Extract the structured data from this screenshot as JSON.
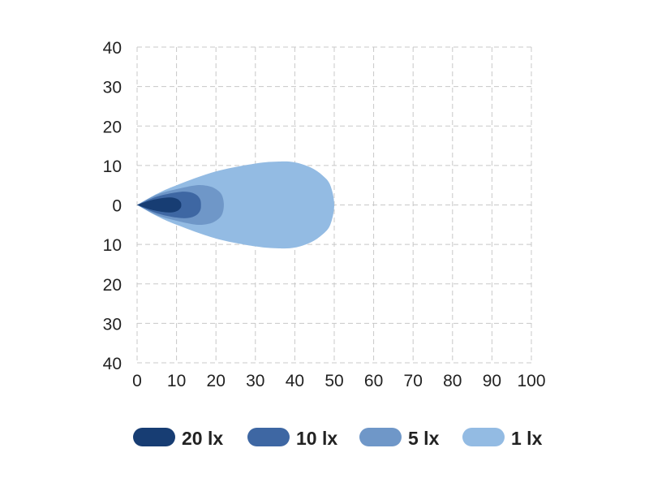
{
  "chart_data": {
    "type": "area",
    "xlim": [
      0,
      100
    ],
    "ylim": [
      -40,
      40
    ],
    "x_ticks": [
      "0",
      "10",
      "20",
      "30",
      "40",
      "50",
      "60",
      "70",
      "80",
      "90",
      "100"
    ],
    "y_ticks": [
      "40",
      "30",
      "20",
      "10",
      "0",
      "10",
      "20",
      "30",
      "40"
    ],
    "grid": true,
    "legend_placement": "bottom",
    "series": [
      {
        "name": "1 lx",
        "color": "#93bbe3",
        "contour_upper": [
          [
            0,
            0
          ],
          [
            5,
            2.8
          ],
          [
            10,
            5
          ],
          [
            20,
            8.5
          ],
          [
            30,
            10.5
          ],
          [
            36,
            11
          ],
          [
            40,
            10.8
          ],
          [
            44,
            9.5
          ],
          [
            47,
            7.5
          ],
          [
            49,
            5
          ],
          [
            50,
            0
          ]
        ]
      },
      {
        "name": "5 lx",
        "color": "#6f97c8",
        "contour_upper": [
          [
            0,
            0
          ],
          [
            5,
            2.6
          ],
          [
            10,
            4
          ],
          [
            15,
            5
          ],
          [
            18,
            4.8
          ],
          [
            20,
            4
          ],
          [
            21.5,
            2.5
          ],
          [
            22,
            0
          ]
        ]
      },
      {
        "name": "10 lx",
        "color": "#3e67a3",
        "contour_upper": [
          [
            0,
            0
          ],
          [
            5,
            2.1
          ],
          [
            10,
            3.2
          ],
          [
            13,
            3.3
          ],
          [
            15,
            2.6
          ],
          [
            16,
            1.4
          ],
          [
            16.2,
            0
          ]
        ]
      },
      {
        "name": "20 lx",
        "color": "#173d73",
        "contour_upper": [
          [
            0,
            0
          ],
          [
            4,
            1.3
          ],
          [
            8,
            1.9
          ],
          [
            10,
            1.6
          ],
          [
            11,
            0.8
          ],
          [
            11.2,
            0
          ]
        ]
      }
    ]
  }
}
